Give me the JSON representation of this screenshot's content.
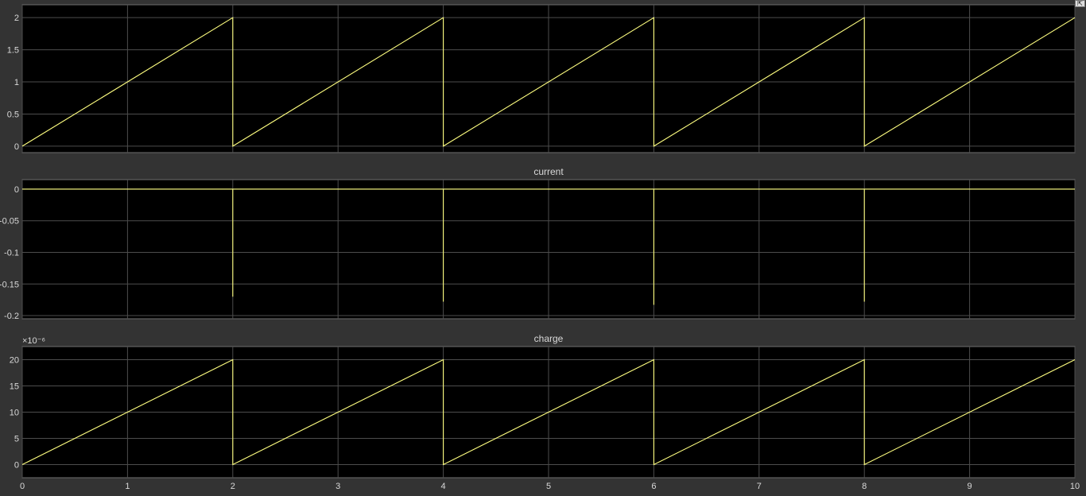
{
  "toolbar": {
    "restore_icon_glyph": "⇱"
  },
  "chart_data": [
    {
      "type": "line",
      "title": "",
      "xlabel": "",
      "ylabel": "",
      "xlim": [
        0,
        10
      ],
      "ylim": [
        -0.1,
        2.2
      ],
      "xticks": [
        0,
        1,
        2,
        3,
        4,
        5,
        6,
        7,
        8,
        9,
        10
      ],
      "yticks": [
        0,
        0.5,
        1,
        1.5,
        2
      ],
      "ytick_labels": [
        "0",
        "0.5",
        "1",
        "1.5",
        "2"
      ],
      "show_xtick_labels": false,
      "exponent_label": "",
      "grid": true,
      "series": [
        {
          "color": "#ffff80",
          "x": [
            0,
            2,
            2,
            4,
            4,
            6,
            6,
            8,
            8,
            10
          ],
          "y": [
            0,
            2,
            0,
            2,
            0,
            2,
            0,
            2,
            0,
            2
          ]
        }
      ]
    },
    {
      "type": "line",
      "title": "current",
      "xlabel": "",
      "ylabel": "",
      "xlim": [
        0,
        10
      ],
      "ylim": [
        -0.205,
        0.015
      ],
      "xticks": [
        0,
        1,
        2,
        3,
        4,
        5,
        6,
        7,
        8,
        9,
        10
      ],
      "yticks": [
        0,
        -0.05,
        -0.1,
        -0.15,
        -0.2
      ],
      "ytick_labels": [
        "0",
        "-0.05",
        "-0.1",
        "-0.15",
        "-0.2"
      ],
      "show_xtick_labels": false,
      "exponent_label": "",
      "grid": true,
      "series": [
        {
          "color": "#ffff80",
          "x": [
            0,
            2,
            2,
            2,
            4,
            4,
            4,
            6,
            6,
            6,
            8,
            8,
            8,
            10
          ],
          "y": [
            0,
            0,
            -0.17,
            0,
            0,
            -0.178,
            0,
            0,
            -0.183,
            0,
            0,
            -0.178,
            0,
            0
          ]
        }
      ]
    },
    {
      "type": "line",
      "title": "charge",
      "xlabel": "",
      "ylabel": "",
      "xlim": [
        0,
        10
      ],
      "ylim": [
        -2.5,
        22.5
      ],
      "xticks": [
        0,
        1,
        2,
        3,
        4,
        5,
        6,
        7,
        8,
        9,
        10
      ],
      "xtick_labels": [
        "0",
        "1",
        "2",
        "3",
        "4",
        "5",
        "6",
        "7",
        "8",
        "9",
        "10"
      ],
      "yticks": [
        0,
        5,
        10,
        15,
        20
      ],
      "ytick_labels": [
        "0",
        "5",
        "10",
        "15",
        "20"
      ],
      "show_xtick_labels": true,
      "exponent_label": "×10⁻⁶",
      "grid": true,
      "series": [
        {
          "color": "#ffff80",
          "x": [
            0,
            2,
            2,
            4,
            4,
            6,
            6,
            8,
            8,
            10
          ],
          "y": [
            0,
            20,
            0,
            20,
            0,
            20,
            0,
            20,
            0,
            20
          ]
        }
      ]
    }
  ]
}
